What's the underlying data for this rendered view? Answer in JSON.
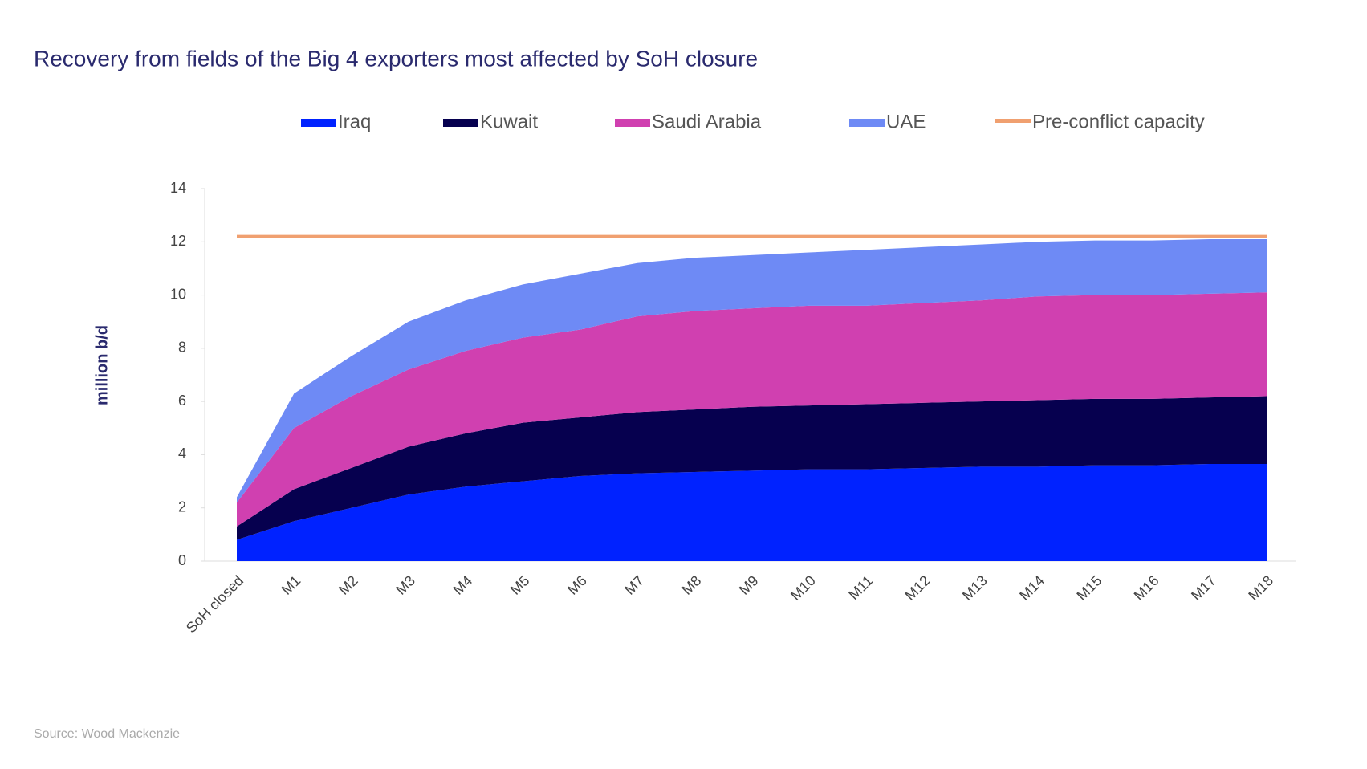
{
  "chart_data": {
    "type": "area",
    "stacked": true,
    "title": "Recovery from fields of the Big 4 exporters most affected by SoH closure",
    "y_label": "million b/d",
    "source": "Source: Wood Mackenzie",
    "categories": [
      "SoH closed",
      "M1",
      "M2",
      "M3",
      "M4",
      "M5",
      "M6",
      "M7",
      "M8",
      "M9",
      "M10",
      "M11",
      "M12",
      "M13",
      "M14",
      "M15",
      "M16",
      "M17",
      "M18"
    ],
    "series": [
      {
        "name": "Iraq",
        "color": "#0022ff",
        "values": [
          0.8,
          1.5,
          2.0,
          2.5,
          2.8,
          3.0,
          3.2,
          3.3,
          3.35,
          3.4,
          3.45,
          3.45,
          3.5,
          3.55,
          3.55,
          3.6,
          3.6,
          3.65,
          3.65
        ]
      },
      {
        "name": "Kuwait",
        "color": "#06004f",
        "values": [
          0.5,
          1.2,
          1.5,
          1.8,
          2.0,
          2.2,
          2.2,
          2.3,
          2.35,
          2.4,
          2.4,
          2.45,
          2.45,
          2.45,
          2.5,
          2.5,
          2.5,
          2.5,
          2.55
        ]
      },
      {
        "name": "Saudi Arabia",
        "color": "#d040b0",
        "values": [
          0.9,
          2.3,
          2.7,
          2.9,
          3.1,
          3.2,
          3.3,
          3.6,
          3.7,
          3.7,
          3.75,
          3.7,
          3.75,
          3.8,
          3.9,
          3.9,
          3.9,
          3.9,
          3.9
        ]
      },
      {
        "name": "UAE",
        "color": "#6e8af5",
        "values": [
          0.2,
          1.3,
          1.5,
          1.8,
          1.9,
          2.0,
          2.1,
          2.0,
          2.0,
          2.0,
          2.0,
          2.1,
          2.1,
          2.1,
          2.05,
          2.05,
          2.05,
          2.05,
          2.0
        ]
      },
      {
        "name": "Pre-conflict capacity",
        "type": "line",
        "color": "#f0a070",
        "values": [
          12.2,
          12.2,
          12.2,
          12.2,
          12.2,
          12.2,
          12.2,
          12.2,
          12.2,
          12.2,
          12.2,
          12.2,
          12.2,
          12.2,
          12.2,
          12.2,
          12.2,
          12.2,
          12.2
        ]
      }
    ],
    "ylim": [
      0,
      14
    ],
    "yticks": [
      0,
      2,
      4,
      6,
      8,
      10,
      12,
      14
    ],
    "grid": false,
    "legend": "top"
  }
}
